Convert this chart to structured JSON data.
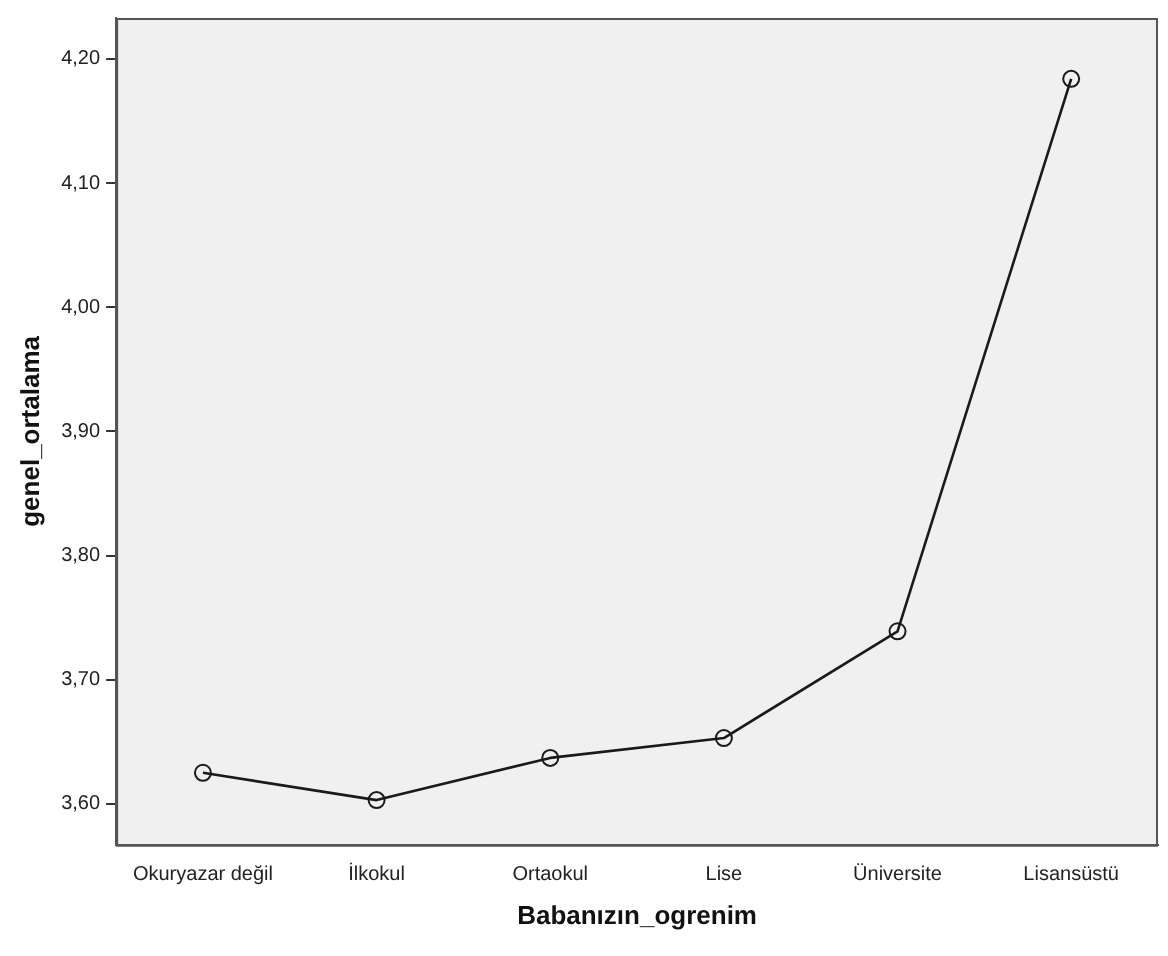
{
  "chart_data": {
    "type": "line",
    "xlabel": "Babanızın_ogrenim",
    "ylabel": "genel_ortalama",
    "categories": [
      "Okuryazar değil",
      "İlkokul",
      "Ortaokul",
      "Lise",
      "Üniversite",
      "Lisansüstü"
    ],
    "series": [
      {
        "color": "#1a1a1a",
        "values": [
          3.625,
          3.603,
          3.637,
          3.653,
          3.739,
          4.184
        ]
      }
    ],
    "ylim": [
      3.567,
      4.233
    ],
    "yticks": [
      {
        "value": 3.6,
        "label": "3,60"
      },
      {
        "value": 3.7,
        "label": "3,70"
      },
      {
        "value": 3.8,
        "label": "3,80"
      },
      {
        "value": 3.9,
        "label": "3,90"
      },
      {
        "value": 4.0,
        "label": "4,00"
      },
      {
        "value": 4.1,
        "label": "4,10"
      },
      {
        "value": 4.2,
        "label": "4,20"
      }
    ],
    "grid": false,
    "legend": false,
    "marker": "circle",
    "line_style": "solid"
  }
}
